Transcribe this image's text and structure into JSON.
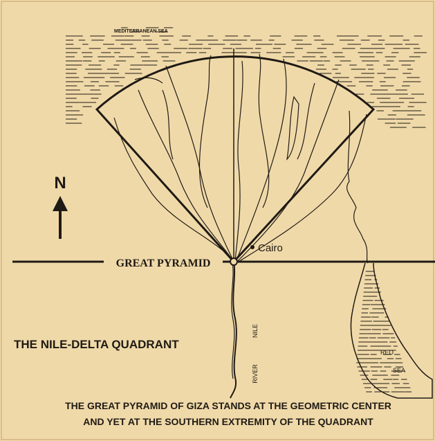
{
  "labels": {
    "sea": "MEDITERRANEAN SEA",
    "north": "N",
    "pyramid": "GREAT PYRAMID",
    "city": "Cairo",
    "nile": "NILE",
    "river": "RIVER",
    "red": "RED",
    "red_sea": "SEA"
  },
  "title": "THE NILE-DELTA QUADRANT",
  "caption": [
    "THE GREAT PYRAMID OF GIZA STANDS AT THE GEOMETRIC CENTER",
    "AND YET AT THE SOUTHERN EXTREMITY OF THE QUADRANT"
  ]
}
